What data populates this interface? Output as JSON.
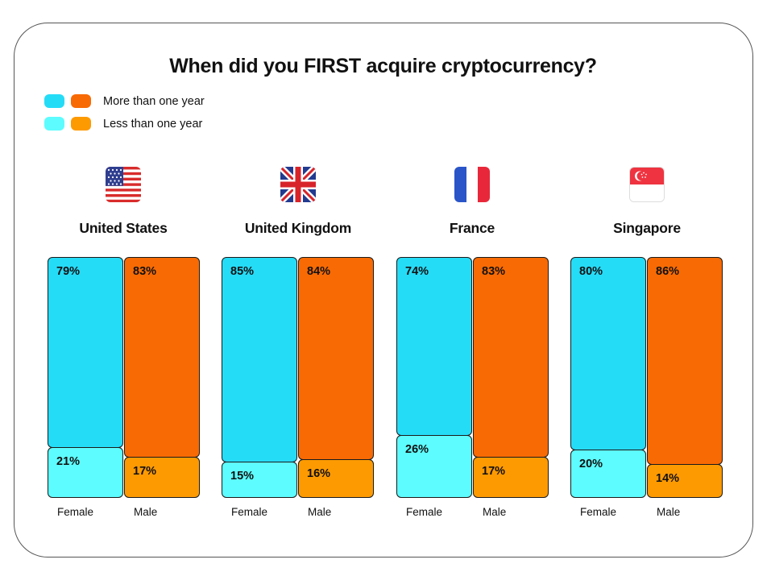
{
  "chart_data": {
    "type": "bar",
    "stacked": true,
    "title": "When did you FIRST acquire cryptocurrency?",
    "legend": {
      "placement": "top-left",
      "items": [
        {
          "label": "More than one year",
          "colors": [
            "#25dcf7",
            "#f86a03"
          ]
        },
        {
          "label": "Less than one year",
          "colors": [
            "#5dfcfe",
            "#fd9a02"
          ]
        }
      ]
    },
    "colors": {
      "female_more": "#25dcf7",
      "male_more": "#f86a03",
      "female_less": "#5dfcfe",
      "male_less": "#fd9a02"
    },
    "groups": [
      {
        "country": "United States",
        "flag": "us-flag-icon",
        "bars": [
          {
            "category": "Female",
            "more": 79,
            "less": 21,
            "more_label": "79%",
            "less_label": "21%"
          },
          {
            "category": "Male",
            "more": 83,
            "less": 17,
            "more_label": "83%",
            "less_label": "17%"
          }
        ]
      },
      {
        "country": "United Kingdom",
        "flag": "uk-flag-icon",
        "bars": [
          {
            "category": "Female",
            "more": 85,
            "less": 15,
            "more_label": "85%",
            "less_label": "15%"
          },
          {
            "category": "Male",
            "more": 84,
            "less": 16,
            "more_label": "84%",
            "less_label": "16%"
          }
        ]
      },
      {
        "country": "France",
        "flag": "france-flag-icon",
        "bars": [
          {
            "category": "Female",
            "more": 74,
            "less": 26,
            "more_label": "74%",
            "less_label": "26%"
          },
          {
            "category": "Male",
            "more": 83,
            "less": 17,
            "more_label": "83%",
            "less_label": "17%"
          }
        ]
      },
      {
        "country": "Singapore",
        "flag": "singapore-flag-icon",
        "bars": [
          {
            "category": "Female",
            "more": 80,
            "less": 20,
            "more_label": "80%",
            "less_label": "20%"
          },
          {
            "category": "Male",
            "more": 86,
            "less": 14,
            "more_label": "86%",
            "less_label": "14%"
          }
        ]
      }
    ]
  }
}
